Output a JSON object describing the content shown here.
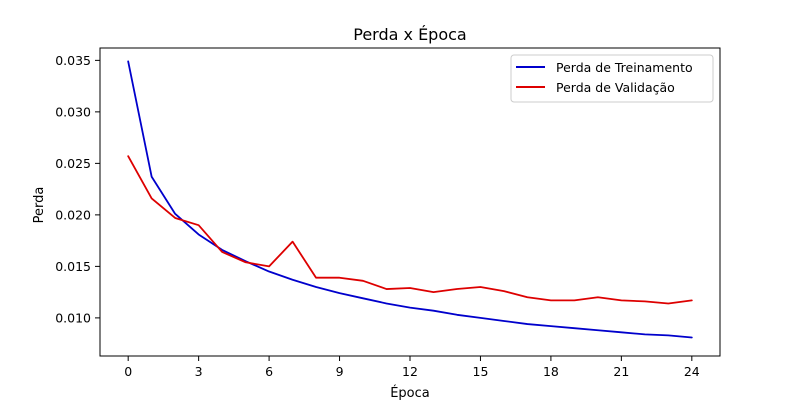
{
  "chart_data": {
    "type": "line",
    "title": "Perda x Época",
    "xlabel": "Época",
    "ylabel": "Perda",
    "xlim": [
      -1.2,
      25.2
    ],
    "ylim": [
      0.0063,
      0.0362
    ],
    "x_ticks": [
      0,
      3,
      6,
      9,
      12,
      15,
      18,
      21,
      24
    ],
    "x_tick_labels": [
      "0",
      "3",
      "6",
      "9",
      "12",
      "15",
      "18",
      "21",
      "24"
    ],
    "y_ticks": [
      0.01,
      0.015,
      0.02,
      0.025,
      0.03,
      0.035
    ],
    "y_tick_labels": [
      "0.010",
      "0.015",
      "0.020",
      "0.025",
      "0.030",
      "0.035"
    ],
    "grid": false,
    "legend_position": "top-right",
    "x": [
      0,
      1,
      2,
      3,
      4,
      5,
      6,
      7,
      8,
      9,
      10,
      11,
      12,
      13,
      14,
      15,
      16,
      17,
      18,
      19,
      20,
      21,
      22,
      23,
      24
    ],
    "series": [
      {
        "name": "Perda de Treinamento",
        "color": "#0000cc",
        "values": [
          0.0349,
          0.0237,
          0.0201,
          0.0181,
          0.0166,
          0.0155,
          0.0145,
          0.0137,
          0.013,
          0.0124,
          0.0119,
          0.0114,
          0.011,
          0.0107,
          0.0103,
          0.01,
          0.0097,
          0.0094,
          0.0092,
          0.009,
          0.0088,
          0.0086,
          0.0084,
          0.0083,
          0.0081
        ]
      },
      {
        "name": "Perda de Validação",
        "color": "#dd0000",
        "values": [
          0.0257,
          0.0216,
          0.0197,
          0.019,
          0.0164,
          0.0154,
          0.015,
          0.0174,
          0.0139,
          0.0139,
          0.0136,
          0.0128,
          0.0129,
          0.0125,
          0.0128,
          0.013,
          0.0126,
          0.012,
          0.0117,
          0.0117,
          0.012,
          0.0117,
          0.0116,
          0.0114,
          0.0117
        ]
      }
    ]
  }
}
